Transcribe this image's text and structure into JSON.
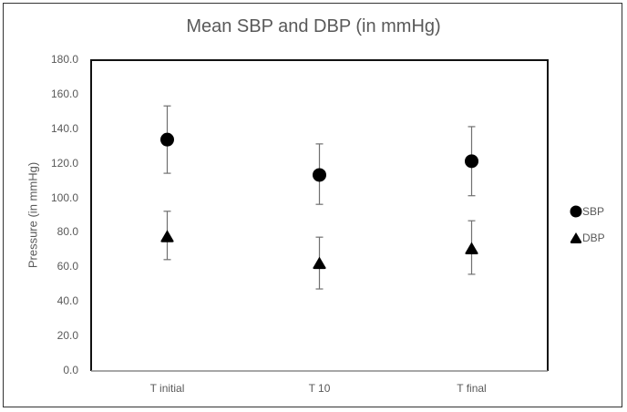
{
  "chart_data": {
    "type": "scatter",
    "title": "Mean SBP and DBP (in mmHg)",
    "xlabel": "",
    "ylabel": "Pressure (in mmHg)",
    "ylim": [
      0,
      180
    ],
    "yticks": [
      "0.0",
      "20.0",
      "40.0",
      "60.0",
      "80.0",
      "100.0",
      "120.0",
      "140.0",
      "160.0",
      "180.0"
    ],
    "categories": [
      "T initial",
      "T 10",
      "T final"
    ],
    "grid": false,
    "legend_position": "right",
    "series": [
      {
        "name": "SBP",
        "marker": "circle",
        "color": "#000000",
        "values": [
          134,
          113.5,
          121.5
        ],
        "error_upper": [
          153.5,
          131.5,
          141.5
        ],
        "error_lower": [
          114.5,
          96.5,
          101.5
        ]
      },
      {
        "name": "DBP",
        "marker": "triangle",
        "color": "#000000",
        "values": [
          78,
          62.5,
          71
        ],
        "error_upper": [
          92.5,
          77.5,
          87
        ],
        "error_lower": [
          64.5,
          47.5,
          56
        ]
      }
    ]
  }
}
